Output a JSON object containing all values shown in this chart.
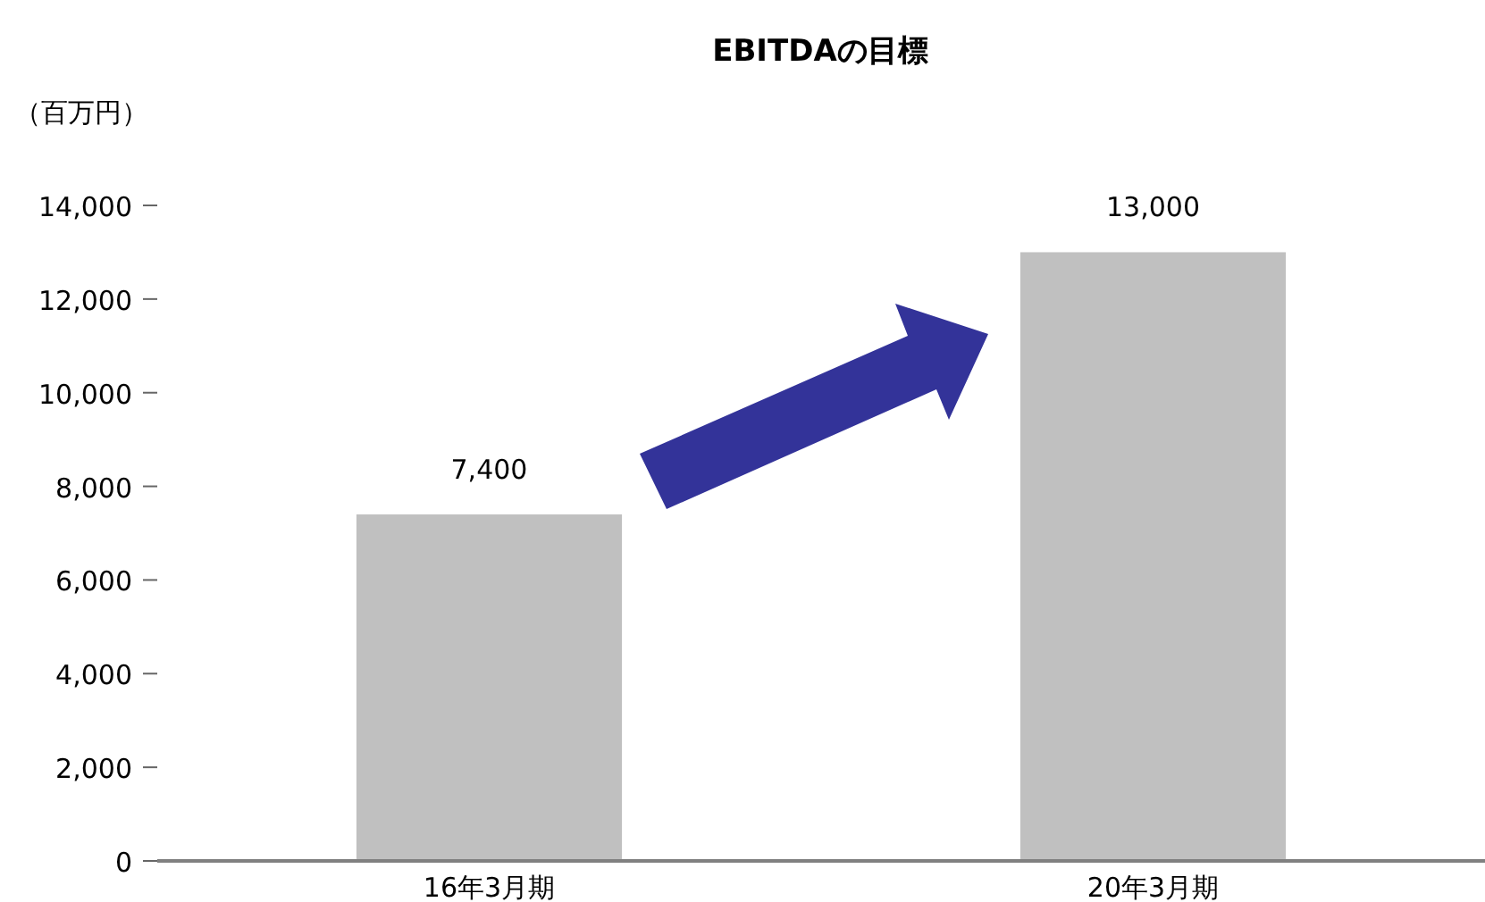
{
  "chart_data": {
    "type": "bar",
    "title": "EBITDAの目標",
    "ylabel": "（百万円）",
    "categories": [
      "16年3月期",
      "20年3月期"
    ],
    "values": [
      7400,
      13000
    ],
    "value_labels": [
      "7,400",
      "13,000"
    ],
    "color": "#c0c0c0",
    "ylim": [
      0,
      14000
    ],
    "yticks": [
      0,
      {
        "value": 2000,
        "label": "2,000"
      },
      {
        "value": 4000,
        "label": "4,000"
      },
      {
        "value": 6000,
        "label": "6,000"
      },
      {
        "value": 8000,
        "label": "8,000"
      },
      {
        "value": 10000,
        "label": "10,000"
      },
      {
        "value": 12000,
        "label": "12,000"
      },
      {
        "value": 14000,
        "label": "14,000"
      }
    ],
    "grid": false
  }
}
